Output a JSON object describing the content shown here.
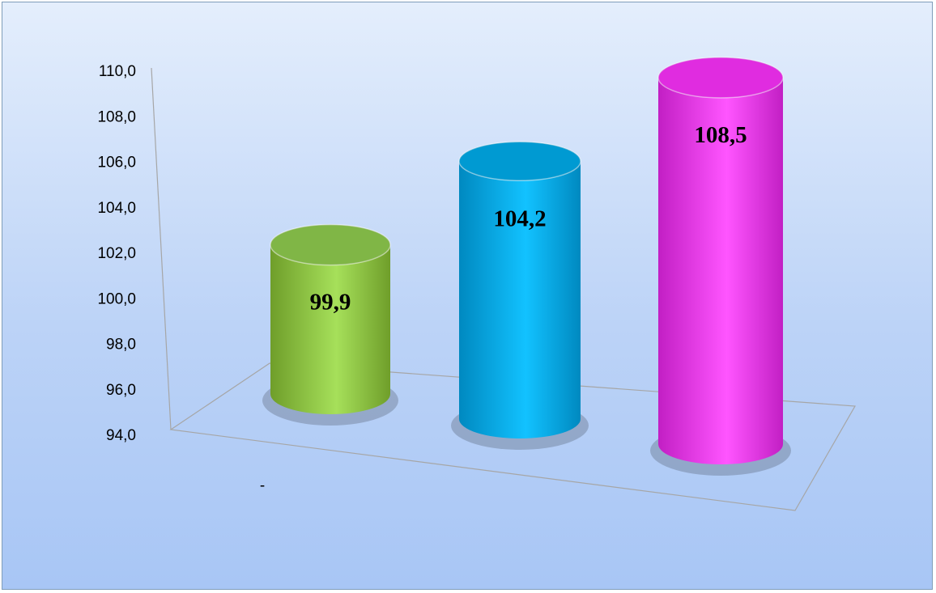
{
  "chart_data": {
    "type": "bar",
    "style": "3d-cylinder",
    "categories": [
      "-"
    ],
    "series": [
      {
        "values": [
          99.9
        ],
        "color": "#92d050"
      },
      {
        "values": [
          104.2
        ],
        "color": "#00b0f0"
      },
      {
        "values": [
          108.5
        ],
        "color": "#ff33ff"
      }
    ],
    "data_labels": [
      "99,9",
      "104,2",
      "108,5"
    ],
    "y_ticks": [
      "94,0",
      "96,0",
      "98,0",
      "100,0",
      "102,0",
      "104,0",
      "106,0",
      "108,0",
      "110,0"
    ],
    "ylim": [
      94,
      110
    ],
    "grid": false,
    "legend": "none"
  }
}
